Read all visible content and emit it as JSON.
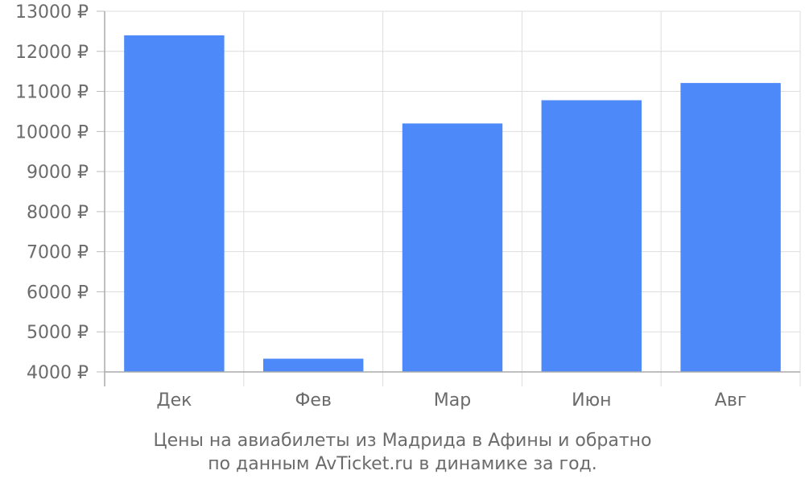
{
  "chart_data": {
    "type": "bar",
    "categories": [
      "Дек",
      "Фев",
      "Мар",
      "Июн",
      "Авг"
    ],
    "values": [
      12400,
      4330,
      10200,
      10780,
      11210
    ],
    "ylim": [
      4000,
      13000
    ],
    "yticks": [
      4000,
      5000,
      6000,
      7000,
      8000,
      9000,
      10000,
      11000,
      12000,
      13000
    ],
    "y_unit_suffix": " ₽",
    "bar_color": "#4d89f9",
    "grid": true,
    "caption_line1": "Цены на авиабилеты из Мадрида в Афины и обратно",
    "caption_line2": "по данным AvTicket.ru в динамике за год."
  }
}
